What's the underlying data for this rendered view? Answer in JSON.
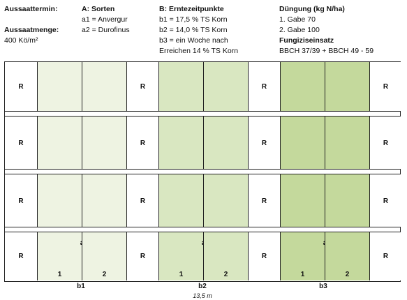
{
  "header": {
    "col1": {
      "line1": "Aussaattermin:",
      "line2": "Aussaatmenge:",
      "line3": "400 Kö/m²"
    },
    "col2": {
      "title": "A: Sorten",
      "a1": "a1 = Anvergur",
      "a2": "a2 = Durofinus"
    },
    "col3": {
      "title": "B: Erntezeitpunkte",
      "b1": "b1 = 17,5 % TS Korn",
      "b2": "b2 = 14,0 % TS Korn",
      "b3_line1": "b3 = ein Woche nach",
      "b3_line2": "Erreichen 14 % TS Korn"
    },
    "col4": {
      "title": "Düngung (kg N/ha)",
      "gabe1": "1. Gabe 70",
      "gabe2": "2. Gabe 100",
      "fung_title": "Fungiziseinsatz",
      "fung_value": "BBCH 37/39 + BBCH 49 - 59"
    }
  },
  "plot_label": "R",
  "variety_letter": "a",
  "variety_numbers": [
    "1",
    "2"
  ],
  "harvest_labels": [
    "b1",
    "b2",
    "b3"
  ],
  "scale_label": "13,5 m",
  "colors": {
    "border": "#222222",
    "r_plot": "#ffffff",
    "b1": "#eef3e2",
    "b2": "#d9e7c1",
    "b3": "#c4d99c"
  }
}
